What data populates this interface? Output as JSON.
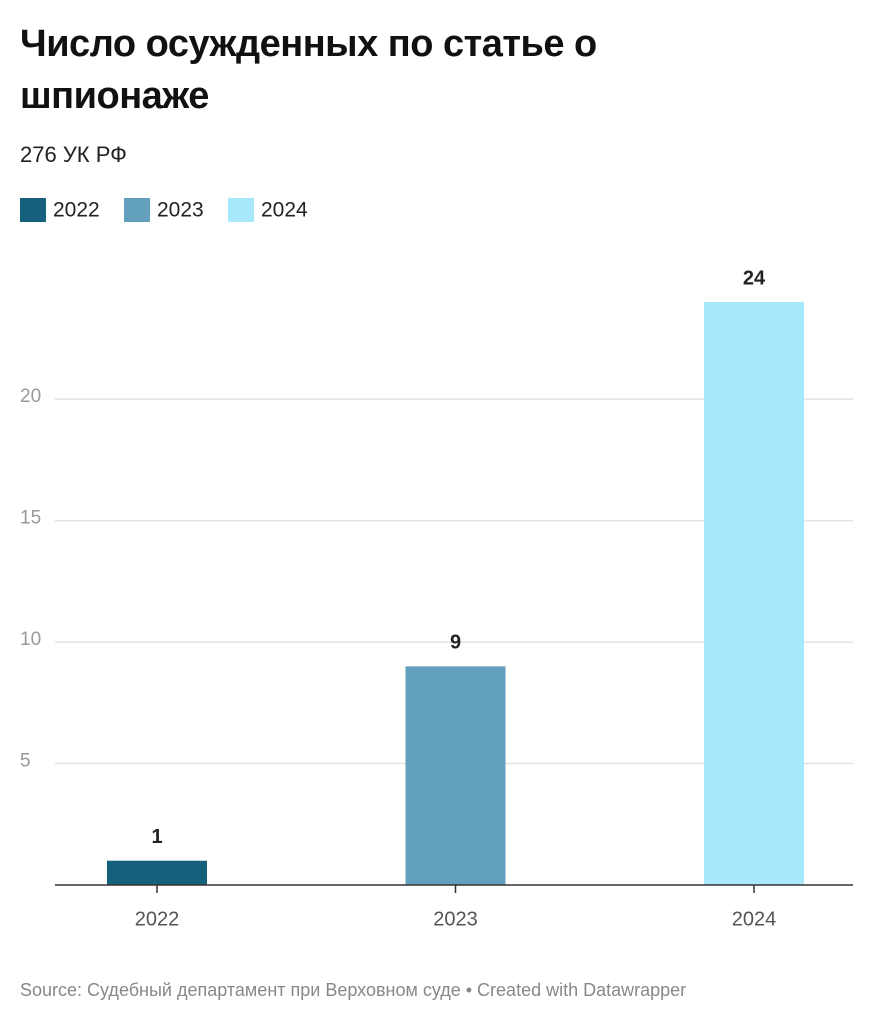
{
  "chart_data": {
    "type": "bar",
    "title": "Число осужденных по статье о шпионаже",
    "subtitle": "276 УК РФ",
    "categories": [
      "2022",
      "2023",
      "2024"
    ],
    "values": [
      1,
      9,
      24
    ],
    "colors": [
      "#15607a",
      "#62a0be",
      "#a8e8fc"
    ],
    "ylim": [
      0,
      24
    ],
    "yticks": [
      5,
      10,
      15,
      20
    ],
    "grid": true,
    "legend": "top-left",
    "source": "Source: Судебный департамент при Верховном суде • Created with Datawrapper"
  }
}
